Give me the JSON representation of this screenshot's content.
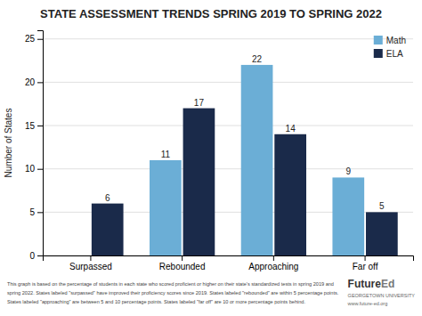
{
  "chart_data": {
    "type": "bar",
    "title": "STATE ASSESSMENT TRENDS SPRING 2019 TO SPRING 2022",
    "categories": [
      "Surpassed",
      "Rebounded",
      "Approaching",
      "Far off"
    ],
    "series": [
      {
        "name": "Math",
        "color": "#6baed6",
        "values": [
          null,
          11,
          22,
          9
        ]
      },
      {
        "name": "ELA",
        "color": "#1a2a4a",
        "values": [
          6,
          17,
          14,
          5
        ]
      }
    ],
    "ylabel": "Number of States",
    "ylim": [
      0,
      26
    ],
    "yticks": [
      0,
      5,
      10,
      15,
      20,
      25
    ],
    "grid": true,
    "legend": "upper right",
    "data_labels": true,
    "annotations": [
      "This graph is based on the percentage of students in each state who scored proficient or higher on their state's standardized tests in spring 2019 and",
      "spring 2022. States labeled \"surpassed\" have improved their proficiency scores since 2019. States labeled \"rebounded\" are within 5 percentage points.",
      "States labeled \"approaching\" are between 5 and 10 percentage points. States labeled \"far off\" are 10 or more percentage points behind.",
      "Future",
      "Ed",
      "GEORGETOWN UNIVERSITY",
      "www.future-ed.org"
    ]
  }
}
